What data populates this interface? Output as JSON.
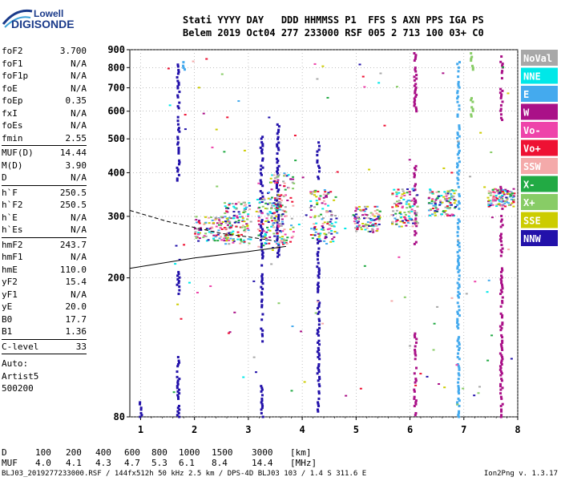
{
  "logo": {
    "line1": "Lowell",
    "line2": "DIGISONDE"
  },
  "header": {
    "row1": "Stati YYYY DAY   DDD HHMMSS P1  FFS S AXN PPS IGA PS",
    "row2": "Belem 2019 Oct04 277 233000 RSF 005 2 713 100 03+ C0"
  },
  "params": [
    {
      "label": "foF2",
      "value": "3.700"
    },
    {
      "label": "foF1",
      "value": "N/A"
    },
    {
      "label": "foF1p",
      "value": "N/A"
    },
    {
      "label": "foE",
      "value": "N/A"
    },
    {
      "label": "foEp",
      "value": "0.35"
    },
    {
      "label": "fxI",
      "value": "N/A"
    },
    {
      "label": "foEs",
      "value": "N/A"
    },
    {
      "label": "fmin",
      "value": "2.55"
    }
  ],
  "params2": [
    {
      "label": "MUF(D)",
      "value": "14.44"
    },
    {
      "label": "M(D)",
      "value": "3.90"
    },
    {
      "label": "D",
      "value": "N/A"
    }
  ],
  "params3": [
    {
      "label": "h`F",
      "value": "250.5"
    },
    {
      "label": "h`F2",
      "value": "250.5"
    },
    {
      "label": "h`E",
      "value": "N/A"
    },
    {
      "label": "h`Es",
      "value": "N/A"
    }
  ],
  "params4": [
    {
      "label": "hmF2",
      "value": "243.7"
    },
    {
      "label": "hmF1",
      "value": "N/A"
    },
    {
      "label": "hmE",
      "value": "110.0"
    },
    {
      "label": "yF2",
      "value": "15.4"
    },
    {
      "label": "yF1",
      "value": "N/A"
    },
    {
      "label": "yE",
      "value": "20.0"
    },
    {
      "label": "B0",
      "value": "17.7"
    },
    {
      "label": "B1",
      "value": "1.36"
    }
  ],
  "clevel": {
    "label": "C-level",
    "value": "33"
  },
  "auto": [
    "Auto:",
    "Artist5",
    "500200"
  ],
  "muf_table": {
    "d_label": "D",
    "d_values": [
      "100",
      "200",
      "400",
      "600",
      "800",
      "1000",
      "1500",
      "3000"
    ],
    "d_unit": "[km]",
    "m_label": "MUF",
    "m_values": [
      "4.0",
      "4.1",
      "4.3",
      "4.7",
      "5.3",
      "6.1",
      "8.4",
      "14.4"
    ],
    "m_unit": "[MHz]"
  },
  "footer": {
    "left": "BLJ03_2019277233000.RSF / 144fx512h 50 kHz 2.5 km / DPS-4D BLJ03 103 / 1.4 S 311.6 E",
    "right": "Ion2Png v. 1.3.17"
  },
  "chart_data": {
    "type": "scatter",
    "title": "",
    "xlabel": "",
    "ylabel": "",
    "xlim": [
      0.8,
      8.0
    ],
    "ylim": [
      80,
      900
    ],
    "y_scale": "log",
    "grid": "dotted",
    "xticks": [
      "1",
      "2",
      "3",
      "4",
      "5",
      "6",
      "7",
      "8"
    ],
    "yticks": [
      "80",
      "200",
      "300",
      "400",
      "500",
      "600",
      "700",
      "800",
      "900"
    ],
    "legend_position": "right",
    "legend": [
      {
        "name": "NoVal",
        "color": "#a8a8a8"
      },
      {
        "name": "NNE",
        "color": "#00e8e8"
      },
      {
        "name": "E",
        "color": "#44aaee"
      },
      {
        "name": "W",
        "color": "#aa1188"
      },
      {
        "name": "Vo-",
        "color": "#ee44aa"
      },
      {
        "name": "Vo+",
        "color": "#ee1133"
      },
      {
        "name": "SSW",
        "color": "#f4aaaa"
      },
      {
        "name": "X-",
        "color": "#22aa44"
      },
      {
        "name": "X+",
        "color": "#88cc66"
      },
      {
        "name": "SSE",
        "color": "#cccc00"
      },
      {
        "name": "NNW",
        "color": "#2211aa"
      }
    ],
    "columns": [
      {
        "f": 1.0,
        "ranges": [
          [
            80,
            90
          ]
        ],
        "color": "#2211aa"
      },
      {
        "f": 1.7,
        "ranges": [
          [
            80,
            120
          ],
          [
            180,
            210
          ],
          [
            380,
            820
          ]
        ],
        "color": "#2211aa"
      },
      {
        "f": 1.8,
        "ranges": [
          [
            790,
            830
          ]
        ],
        "color": "#44aaee"
      },
      {
        "f": 3.25,
        "ranges": [
          [
            80,
            100
          ],
          [
            130,
            510
          ]
        ],
        "color": "#2211aa"
      },
      {
        "f": 3.55,
        "ranges": [
          [
            230,
            560
          ]
        ],
        "color": "#2211aa"
      },
      {
        "f": 4.3,
        "ranges": [
          [
            80,
            260
          ],
          [
            380,
            490
          ]
        ],
        "color": "#2211aa"
      },
      {
        "f": 6.1,
        "ranges": [
          [
            80,
            140
          ],
          [
            250,
            420
          ],
          [
            600,
            880
          ]
        ],
        "color": "#aa1188"
      },
      {
        "f": 6.9,
        "ranges": [
          [
            80,
            840
          ]
        ],
        "color": "#44aaee"
      },
      {
        "f": 7.15,
        "ranges": [
          [
            580,
            660
          ],
          [
            780,
            880
          ]
        ],
        "color": "#88cc66"
      },
      {
        "f": 7.7,
        "ranges": [
          [
            80,
            380
          ],
          [
            560,
            880
          ]
        ],
        "color": "#aa1188"
      }
    ],
    "clusters": [
      {
        "f": [
          2.0,
          2.7
        ],
        "h": [
          255,
          300
        ]
      },
      {
        "f": 2.8,
        "h": [
          250,
          330
        ]
      },
      {
        "f": 3.4,
        "h": [
          240,
          340
        ]
      },
      {
        "f": 3.6,
        "h": [
          250,
          400
        ]
      },
      {
        "f": 4.4,
        "h": [
          250,
          360
        ]
      },
      {
        "f": 5.2,
        "h": [
          270,
          320
        ]
      },
      {
        "f": 5.9,
        "h": [
          280,
          360
        ]
      },
      {
        "f": 6.6,
        "h": [
          300,
          360
        ]
      },
      {
        "f": 7.7,
        "h": [
          320,
          360
        ]
      }
    ],
    "trace_solid": [
      [
        0.8,
        213
      ],
      [
        2.0,
        228
      ],
      [
        3.0,
        238
      ],
      [
        3.7,
        246
      ]
    ],
    "trace_dashed": [
      [
        0.8,
        312
      ],
      [
        1.5,
        290
      ],
      [
        2.5,
        268
      ],
      [
        3.0,
        262
      ],
      [
        3.5,
        255
      ]
    ]
  }
}
